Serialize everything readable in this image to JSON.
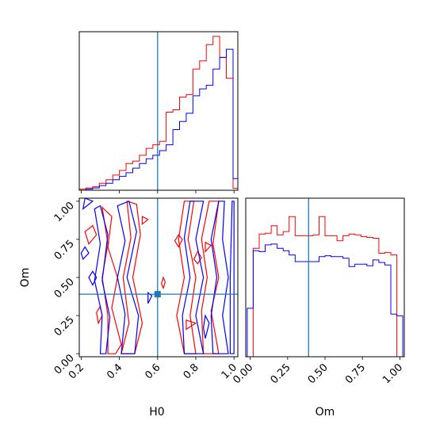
{
  "chart_data": {
    "type": "corner",
    "parameters": [
      "H0",
      "Om"
    ],
    "truth": {
      "H0": 0.6,
      "Om": 0.39
    },
    "colors": {
      "series_a": "#ff0000",
      "series_b": "#0000ff",
      "truth": "#1f77b4"
    },
    "x_ticks": {
      "H0": [
        "0.2",
        "0.4",
        "0.6",
        "0.8",
        "1.0"
      ],
      "Om": [
        "0.00",
        "0.25",
        "0.50",
        "0.75",
        "1.00"
      ]
    },
    "y_ticks": {
      "Om": [
        "0.00",
        "0.25",
        "0.50",
        "0.75",
        "1.00"
      ]
    },
    "xlim": {
      "H0": [
        0.19,
        1.02
      ],
      "Om": [
        -0.03,
        1.03
      ]
    },
    "ylim": {
      "Om": [
        -0.02,
        1.02
      ]
    },
    "hist_H0": {
      "edges": [
        0.19,
        0.225,
        0.26,
        0.295,
        0.33,
        0.365,
        0.4,
        0.435,
        0.47,
        0.505,
        0.54,
        0.575,
        0.61,
        0.645,
        0.68,
        0.715,
        0.75,
        0.785,
        0.82,
        0.855,
        0.89,
        0.925,
        0.96,
        0.995,
        1.02
      ],
      "series_a": [
        0.5,
        1.0,
        1.5,
        3.0,
        4.5,
        6.5,
        8.5,
        11.5,
        12.5,
        15.0,
        18.0,
        19.5,
        21.0,
        33.5,
        34.5,
        40.0,
        41.0,
        52.0,
        55.5,
        62.5,
        66.0,
        57.0,
        48.0,
        0.8
      ],
      "series_b": [
        0.0,
        0.5,
        1.0,
        2.0,
        3.0,
        4.5,
        6.0,
        7.5,
        9.5,
        11.5,
        13.5,
        15.0,
        17.0,
        19.5,
        26.0,
        29.5,
        33.0,
        40.5,
        43.5,
        45.0,
        52.0,
        57.0,
        60.5,
        5.0
      ]
    },
    "hist_Om": {
      "edges": [
        -0.02,
        0.02,
        0.06,
        0.1,
        0.14,
        0.18,
        0.22,
        0.26,
        0.3,
        0.34,
        0.38,
        0.42,
        0.46,
        0.5,
        0.54,
        0.58,
        0.62,
        0.66,
        0.7,
        0.74,
        0.78,
        0.82,
        0.86,
        0.9,
        0.94,
        0.98,
        1.02
      ],
      "series_a": [
        0,
        130,
        147,
        148,
        157,
        146,
        150,
        168,
        145,
        145,
        145,
        146,
        168,
        145,
        145,
        139,
        145,
        147,
        146,
        144,
        143,
        142,
        124,
        125,
        122,
        0
      ],
      "series_b": [
        58,
        127,
        126,
        134,
        135,
        130,
        127,
        122,
        114,
        114,
        114,
        114,
        120,
        121,
        120,
        120,
        118,
        108,
        111,
        111,
        109,
        116,
        113,
        110,
        51,
        49
      ],
      "ymax": 190
    },
    "contours": {
      "series_a": [
        [
          [
            0.34,
            0.0
          ],
          [
            0.34,
            0.25
          ],
          [
            0.31,
            0.5
          ],
          [
            0.34,
            0.72
          ],
          [
            0.31,
            0.96
          ],
          [
            0.36,
            0.9
          ],
          [
            0.34,
            0.7
          ],
          [
            0.39,
            0.5
          ],
          [
            0.36,
            0.3
          ],
          [
            0.41,
            0.06
          ],
          [
            0.38,
            0.0
          ]
        ],
        [
          [
            0.41,
            0.0
          ],
          [
            0.45,
            0.2
          ],
          [
            0.42,
            0.5
          ],
          [
            0.46,
            0.76
          ],
          [
            0.44,
            1.0
          ],
          [
            0.49,
            0.98
          ],
          [
            0.51,
            0.78
          ],
          [
            0.47,
            0.5
          ],
          [
            0.52,
            0.2
          ],
          [
            0.48,
            0.0
          ]
        ],
        [
          [
            0.74,
            0.0
          ],
          [
            0.7,
            0.25
          ],
          [
            0.74,
            0.5
          ],
          [
            0.71,
            0.75
          ],
          [
            0.74,
            1.0
          ],
          [
            0.79,
            1.0
          ],
          [
            0.76,
            0.75
          ],
          [
            0.8,
            0.5
          ],
          [
            0.77,
            0.25
          ],
          [
            0.8,
            0.0
          ]
        ],
        [
          [
            0.84,
            0.0
          ],
          [
            0.83,
            0.28
          ],
          [
            0.86,
            0.5
          ],
          [
            0.83,
            0.75
          ],
          [
            0.87,
            1.0
          ],
          [
            0.92,
            1.0
          ],
          [
            0.89,
            0.72
          ],
          [
            0.92,
            0.5
          ],
          [
            0.88,
            0.28
          ],
          [
            0.92,
            0.0
          ]
        ],
        [
          [
            0.24,
            0.72
          ],
          [
            0.28,
            0.78
          ],
          [
            0.26,
            0.84
          ],
          [
            0.22,
            0.8
          ]
        ],
        [
          [
            0.29,
            0.2
          ],
          [
            0.31,
            0.25
          ],
          [
            0.3,
            0.31
          ],
          [
            0.28,
            0.27
          ]
        ],
        [
          [
            0.52,
            0.85
          ],
          [
            0.55,
            0.88
          ],
          [
            0.52,
            0.9
          ]
        ],
        [
          [
            0.71,
            0.7
          ],
          [
            0.73,
            0.75
          ],
          [
            0.71,
            0.78
          ],
          [
            0.69,
            0.74
          ]
        ],
        [
          [
            0.81,
            0.59
          ],
          [
            0.83,
            0.63
          ],
          [
            0.81,
            0.67
          ],
          [
            0.79,
            0.62
          ]
        ],
        [
          [
            0.85,
            0.67
          ],
          [
            0.88,
            0.71
          ],
          [
            0.85,
            0.73
          ]
        ],
        [
          [
            0.75,
            0.16
          ],
          [
            0.8,
            0.2
          ],
          [
            0.75,
            0.22
          ]
        ],
        [
          [
            0.63,
            0.43
          ],
          [
            0.64,
            0.47
          ],
          [
            0.63,
            0.5
          ],
          [
            0.62,
            0.46
          ]
        ]
      ],
      "series_b": [
        [
          [
            0.3,
            0.0
          ],
          [
            0.31,
            0.25
          ],
          [
            0.27,
            0.48
          ],
          [
            0.3,
            0.72
          ],
          [
            0.27,
            0.95
          ],
          [
            0.3,
            0.97
          ],
          [
            0.34,
            0.78
          ],
          [
            0.31,
            0.48
          ],
          [
            0.35,
            0.24
          ],
          [
            0.33,
            0.0
          ]
        ],
        [
          [
            0.41,
            0.0
          ],
          [
            0.43,
            0.26
          ],
          [
            0.39,
            0.5
          ],
          [
            0.43,
            0.74
          ],
          [
            0.39,
            0.97
          ],
          [
            0.45,
            1.0
          ],
          [
            0.49,
            0.8
          ],
          [
            0.44,
            0.5
          ],
          [
            0.5,
            0.25
          ],
          [
            0.48,
            0.0
          ]
        ],
        [
          [
            0.74,
            0.0
          ],
          [
            0.73,
            0.25
          ],
          [
            0.77,
            0.5
          ],
          [
            0.74,
            0.76
          ],
          [
            0.77,
            1.0
          ],
          [
            0.84,
            1.0
          ],
          [
            0.8,
            0.75
          ],
          [
            0.84,
            0.5
          ],
          [
            0.8,
            0.25
          ],
          [
            0.84,
            0.0
          ]
        ],
        [
          [
            0.89,
            0.0
          ],
          [
            0.88,
            0.25
          ],
          [
            0.91,
            0.5
          ],
          [
            0.88,
            0.75
          ],
          [
            0.92,
            1.0
          ],
          [
            0.95,
            1.0
          ],
          [
            0.94,
            0.75
          ],
          [
            0.97,
            0.5
          ],
          [
            0.94,
            0.25
          ],
          [
            0.97,
            0.0
          ]
        ],
        [
          [
            0.21,
            0.62
          ],
          [
            0.24,
            0.66
          ],
          [
            0.22,
            0.7
          ],
          [
            0.2,
            0.66
          ]
        ],
        [
          [
            0.26,
            0.45
          ],
          [
            0.28,
            0.5
          ],
          [
            0.26,
            0.54
          ],
          [
            0.24,
            0.5
          ]
        ],
        [
          [
            0.21,
            0.95
          ],
          [
            0.26,
            1.0
          ],
          [
            0.22,
            1.02
          ]
        ],
        [
          [
            0.55,
            0.33
          ],
          [
            0.57,
            0.38
          ],
          [
            0.55,
            0.4
          ]
        ],
        [
          [
            0.85,
            0.1
          ],
          [
            0.87,
            0.2
          ],
          [
            0.85,
            0.25
          ],
          [
            0.84,
            0.17
          ]
        ],
        [
          [
            0.98,
            0.0
          ],
          [
            0.98,
            0.5
          ],
          [
            0.99,
            1.0
          ],
          [
            1.0,
            1.0
          ],
          [
            1.0,
            0.0
          ]
        ]
      ]
    }
  }
}
